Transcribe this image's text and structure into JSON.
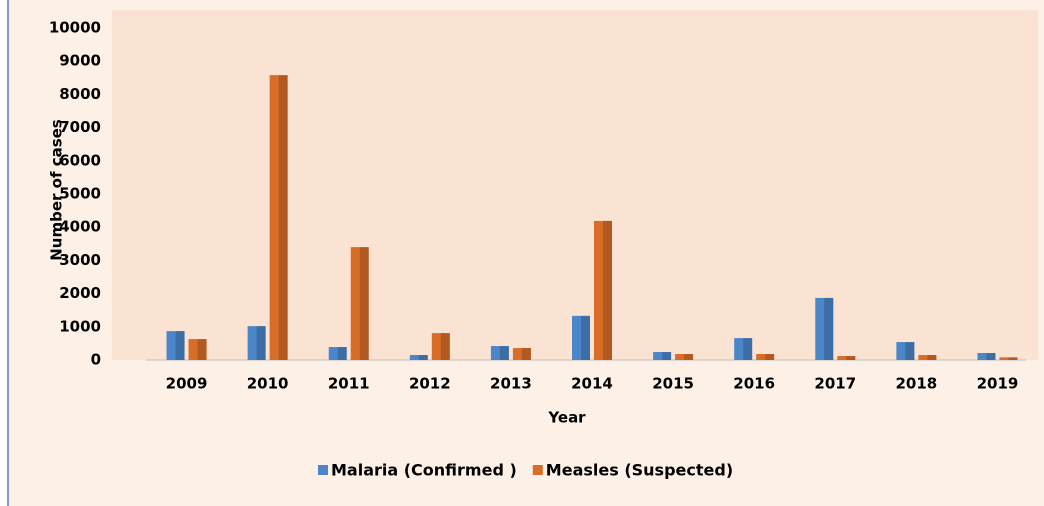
{
  "chart_data": {
    "type": "bar",
    "categories": [
      "2009",
      "2010",
      "2011",
      "2012",
      "2013",
      "2014",
      "2015",
      "2016",
      "2017",
      "2018",
      "2019"
    ],
    "series": [
      {
        "name": "Malaria (Confirmed )",
        "color": "#4a86c8",
        "values": [
          870,
          1020,
          390,
          150,
          420,
          1330,
          240,
          660,
          1870,
          540,
          210
        ]
      },
      {
        "name": "Measles (Suspected)",
        "color": "#d86d28",
        "values": [
          630,
          8580,
          3400,
          810,
          360,
          4190,
          180,
          180,
          120,
          150,
          80
        ]
      }
    ],
    "ylim": [
      0,
      10000
    ],
    "yticks": [
      0,
      1000,
      2000,
      3000,
      4000,
      5000,
      6000,
      7000,
      8000,
      9000,
      10000
    ],
    "y_label": "Number of cases",
    "x_label": "Year",
    "legend": "bottom"
  }
}
